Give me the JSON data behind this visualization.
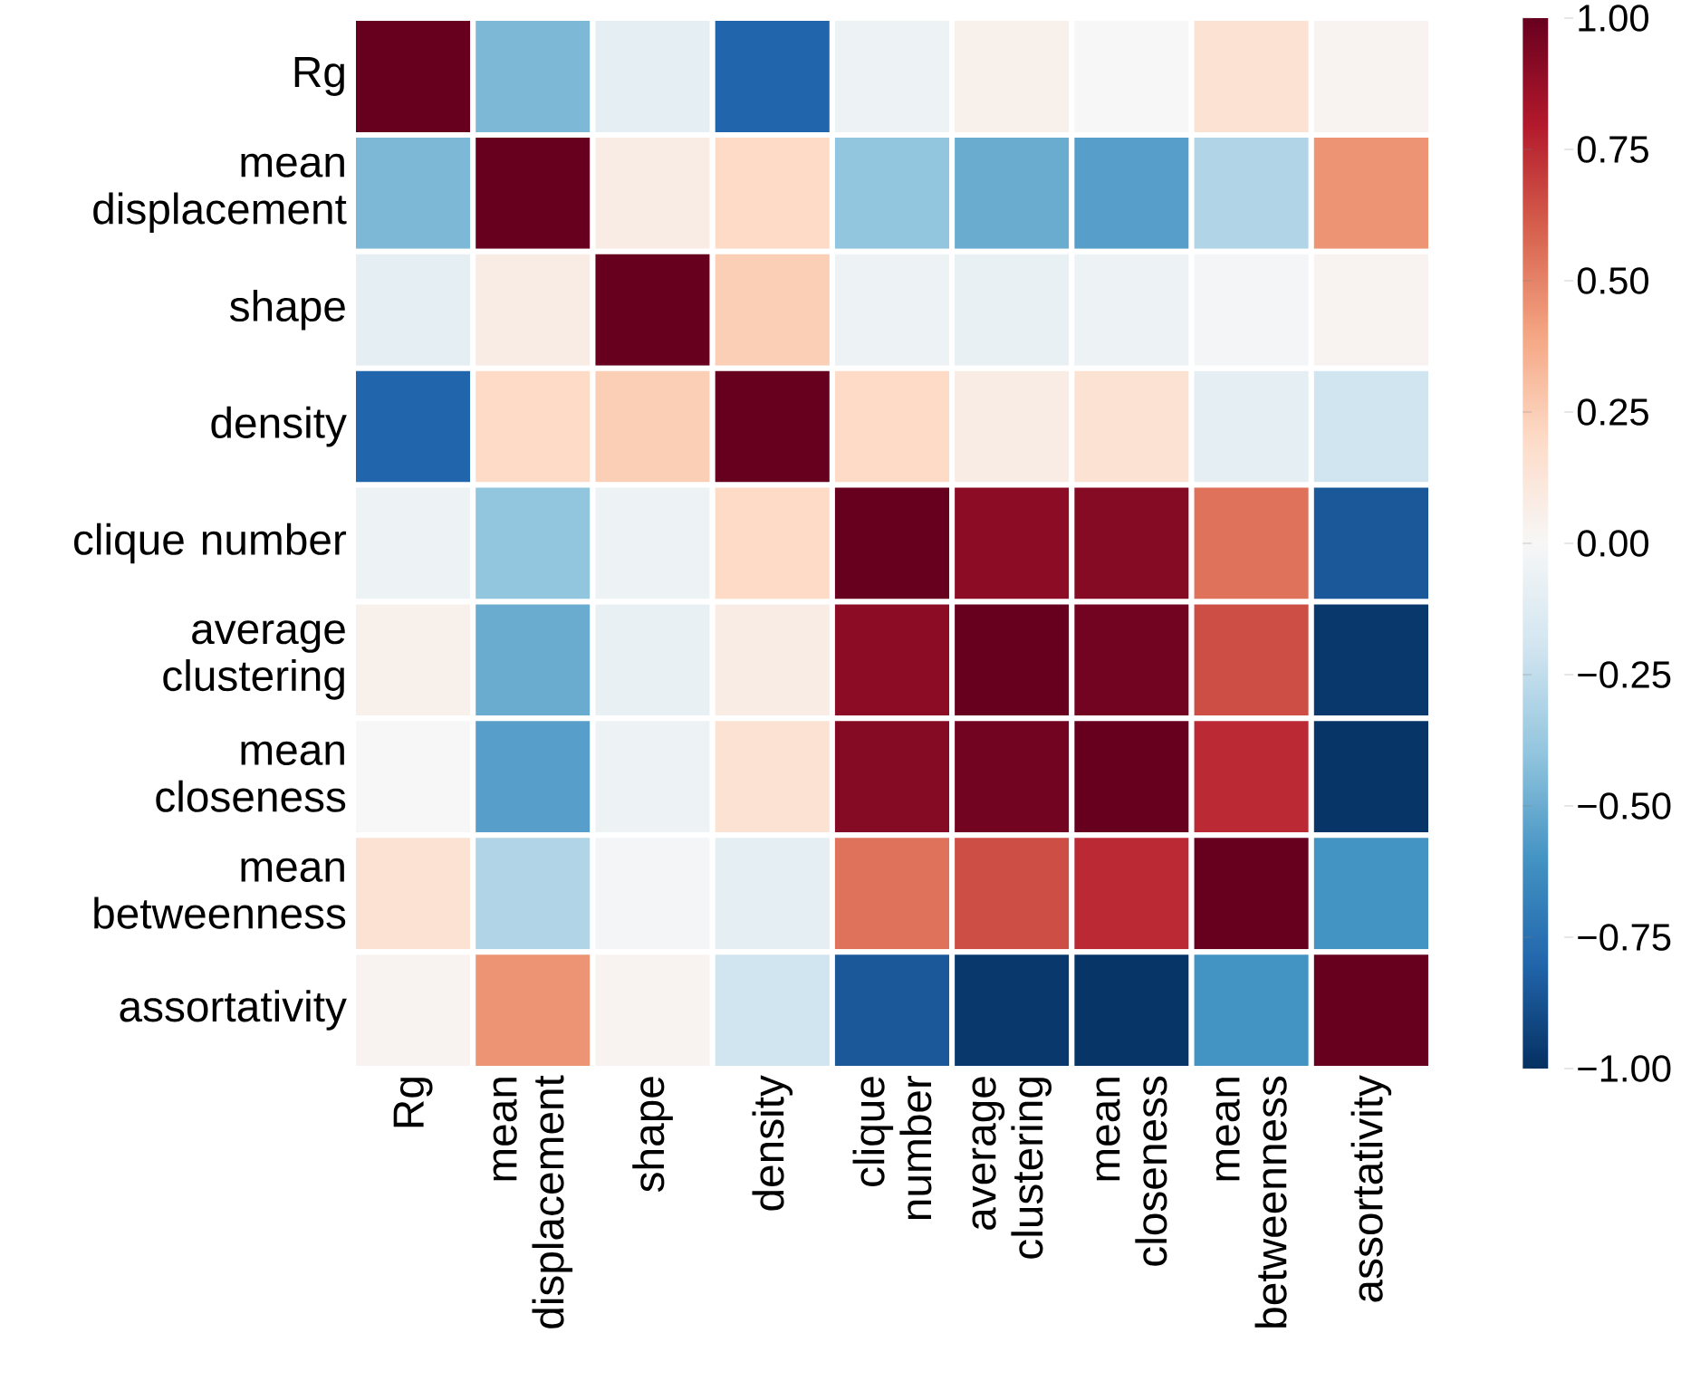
{
  "chart_data": {
    "type": "heatmap",
    "categories": [
      "Rg",
      "mean displacement",
      "shape",
      "density",
      "clique number",
      "average clustering",
      "mean closeness",
      "mean betweenness",
      "assortativity"
    ],
    "y_categories": [
      "Rg",
      "mean displacement",
      "shape",
      "density",
      "clique number",
      "average clustering",
      "mean closeness",
      "mean betweenness",
      "assortativity"
    ],
    "cells": [
      [
        1,
        -0.45,
        -0.1,
        -0.8,
        -0.05,
        0.05,
        0.0,
        0.15,
        0.03
      ],
      [
        -0.45,
        1,
        0.08,
        0.2,
        -0.4,
        -0.5,
        -0.55,
        -0.3,
        0.45
      ],
      [
        -0.1,
        0.08,
        1,
        0.25,
        -0.05,
        -0.08,
        -0.05,
        -0.02,
        0.03
      ],
      [
        -0.8,
        0.2,
        0.25,
        1,
        0.2,
        0.08,
        0.15,
        -0.1,
        -0.2
      ],
      [
        -0.05,
        -0.4,
        -0.05,
        0.2,
        1,
        0.9,
        0.92,
        0.55,
        -0.85
      ],
      [
        0.05,
        -0.5,
        -0.08,
        0.08,
        0.9,
        1,
        0.97,
        0.65,
        -0.97
      ],
      [
        0.0,
        -0.55,
        -0.05,
        0.15,
        0.92,
        0.97,
        1,
        0.75,
        -0.98
      ],
      [
        0.15,
        -0.3,
        -0.02,
        -0.1,
        0.55,
        0.65,
        0.75,
        1,
        -0.6
      ],
      [
        0.03,
        0.45,
        0.03,
        -0.2,
        -0.85,
        -0.97,
        -0.98,
        -0.6,
        1
      ]
    ],
    "clim": [
      -1,
      1
    ],
    "cticks": [
      {
        "value": 1,
        "label": "1.00"
      },
      {
        "value": 0.75,
        "label": "0.75"
      },
      {
        "value": 0.5,
        "label": "0.50"
      },
      {
        "value": 0.25,
        "label": "0.25"
      },
      {
        "value": 0,
        "label": "0.00"
      },
      {
        "value": -0.25,
        "label": "−0.25"
      },
      {
        "value": -0.5,
        "label": "−0.50"
      },
      {
        "value": -0.75,
        "label": "−0.75"
      },
      {
        "value": -1,
        "label": "−1.00"
      }
    ]
  }
}
